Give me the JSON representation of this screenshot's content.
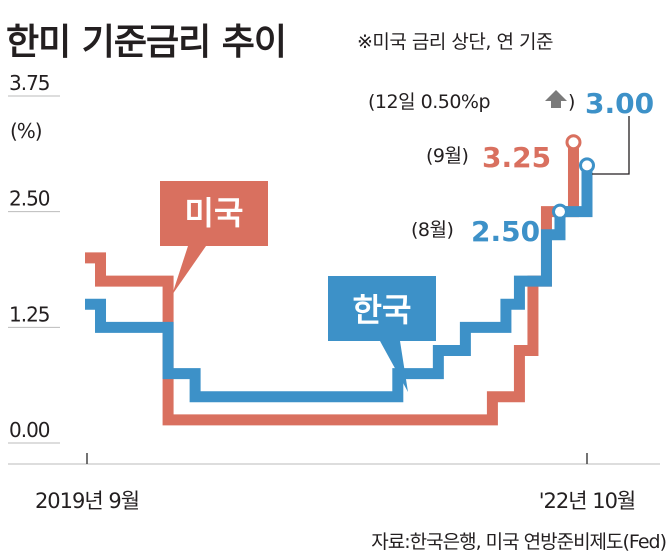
{
  "header": {
    "title": "한미 기준금리 추이",
    "note": "※미국 금리 상단, 연 기준"
  },
  "source": "자료:한국은행, 미국 연방준비제도(Fed)",
  "colors": {
    "us": "#d9705f",
    "korea": "#3d91c8",
    "axis": "#bbbbbb",
    "text": "#231f20",
    "arrow": "#7a7a7a"
  },
  "chart_data": {
    "type": "line",
    "step": true,
    "ylim": [
      0,
      3.75
    ],
    "y_ticks": [
      {
        "value": 3.75,
        "label": "3.75"
      },
      {
        "value": 2.5,
        "label": "2.50"
      },
      {
        "value": 1.25,
        "label": "1.25"
      },
      {
        "value": 0.0,
        "label": "0.00"
      }
    ],
    "y_unit": "(%)",
    "x_tick_labels": {
      "start": "2019년 9월",
      "end": "'22년 10월"
    },
    "series": [
      {
        "name": "미국",
        "color": "#d9705f",
        "steps": [
          [
            "2019-09",
            2.0
          ],
          [
            "2019-10",
            1.75
          ],
          [
            "2020-03",
            0.25
          ],
          [
            "2022-03",
            0.5
          ],
          [
            "2022-05",
            1.0
          ],
          [
            "2022-06",
            1.75
          ],
          [
            "2022-07",
            2.5
          ],
          [
            "2022-09",
            3.25
          ]
        ]
      },
      {
        "name": "한국",
        "color": "#3d91c8",
        "steps": [
          [
            "2019-09",
            1.5
          ],
          [
            "2019-10",
            1.25
          ],
          [
            "2020-03",
            0.75
          ],
          [
            "2020-05",
            0.5
          ],
          [
            "2021-08",
            0.75
          ],
          [
            "2021-11",
            1.0
          ],
          [
            "2022-01",
            1.25
          ],
          [
            "2022-04",
            1.5
          ],
          [
            "2022-05",
            1.75
          ],
          [
            "2022-07",
            2.25
          ],
          [
            "2022-08",
            2.5
          ],
          [
            "2022-10",
            3.0
          ]
        ]
      }
    ],
    "annotations": [
      {
        "month": "(12일 0.50%p",
        "value": "3.00",
        "series": "한국"
      },
      {
        "month": "(9월)",
        "value": "3.25",
        "series": "미국"
      },
      {
        "month": "(8월)",
        "value": "2.50",
        "series": "한국"
      }
    ]
  }
}
